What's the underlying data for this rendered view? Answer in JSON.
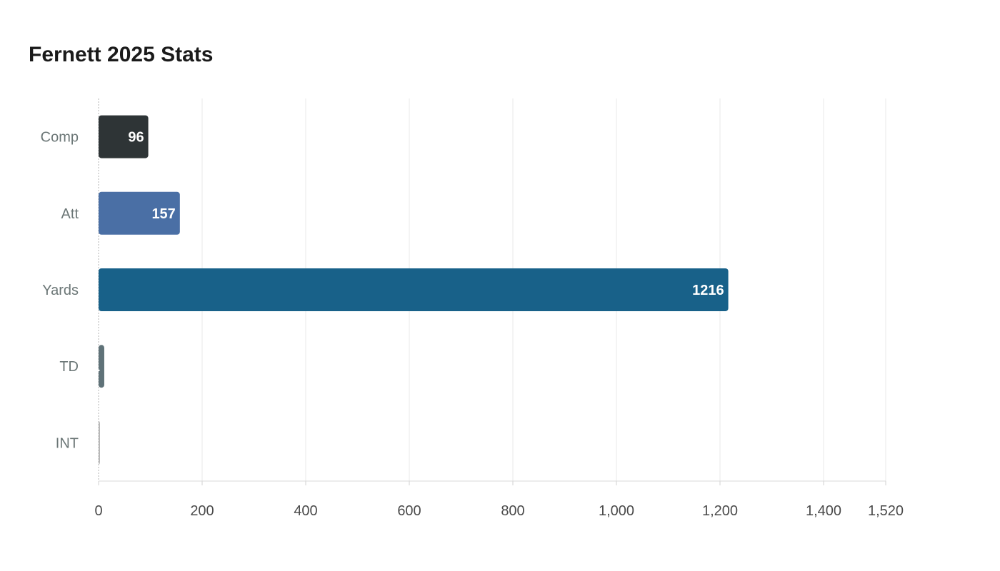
{
  "chart_data": {
    "type": "bar",
    "orientation": "horizontal",
    "title": "Fernett 2025 Stats",
    "xlabel": "",
    "ylabel": "",
    "categories": [
      "Comp",
      "Att",
      "Yards",
      "TD",
      "INT"
    ],
    "values": [
      96,
      157,
      1216,
      11,
      2
    ],
    "colors": [
      "#2e3436",
      "#4a6fa5",
      "#186189",
      "#5f7278",
      "#b8b8b8"
    ],
    "xlim": [
      0,
      1520
    ],
    "xticks": [
      0,
      200,
      400,
      600,
      800,
      1000,
      1200,
      1400,
      1520
    ],
    "xtick_labels": [
      "0",
      "200",
      "400",
      "600",
      "800",
      "1,000",
      "1,200",
      "1,400",
      "1,520"
    ],
    "grid": true,
    "legend": "none"
  }
}
